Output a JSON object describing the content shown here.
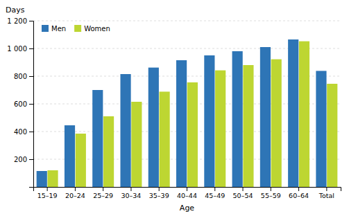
{
  "chart_data": {
    "type": "bar",
    "xlabel": "Age",
    "ylabel": "Days",
    "categories": [
      "15–19",
      "20–24",
      "25–29",
      "30–34",
      "35–39",
      "40–44",
      "45–49",
      "50–54",
      "55–59",
      "60–64",
      "Total"
    ],
    "series": [
      {
        "name": "Men",
        "color": "#2e75b6",
        "values": [
          115,
          445,
          700,
          815,
          862,
          915,
          950,
          980,
          1010,
          1065,
          838
        ]
      },
      {
        "name": "Women",
        "color": "#bdd632",
        "values": [
          120,
          385,
          510,
          615,
          688,
          755,
          842,
          880,
          922,
          1052,
          745
        ]
      }
    ],
    "ylim": [
      0,
      1200
    ],
    "yticks": [
      200,
      400,
      600,
      800,
      {
        "value": 1000,
        "label": "1 000"
      },
      {
        "value": 1200,
        "label": "1 200"
      }
    ],
    "grid": true,
    "legend": "upper left"
  }
}
